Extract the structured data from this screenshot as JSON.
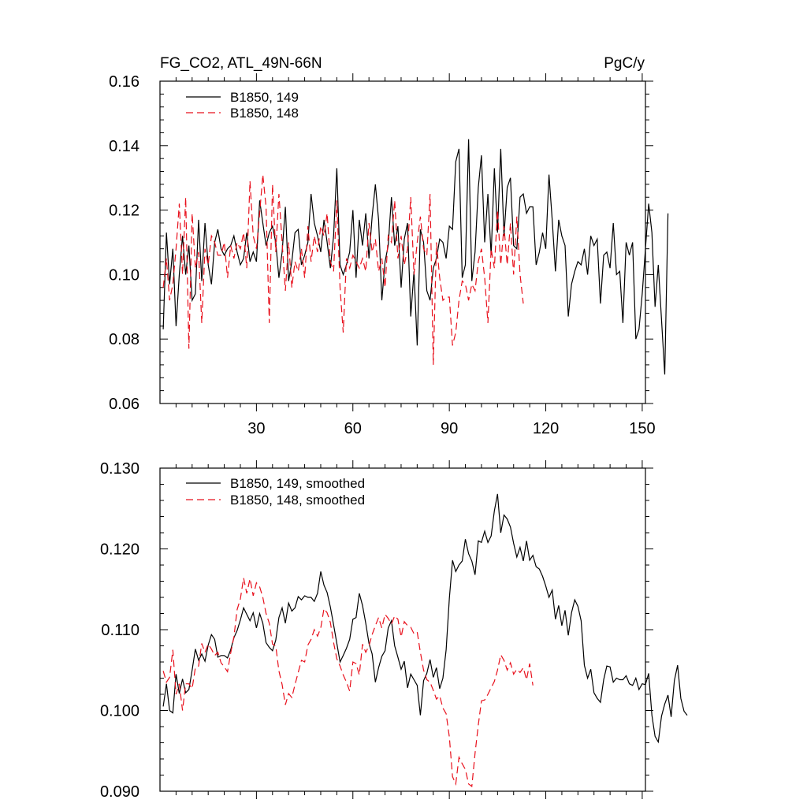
{
  "chart_data": [
    {
      "type": "line",
      "title_left": "FG_CO2, ATL_49N-66N",
      "title_right": "PgC/y",
      "xlim": [
        0,
        151
      ],
      "ylim": [
        0.06,
        0.16
      ],
      "xticks": [
        30,
        60,
        90,
        120,
        150
      ],
      "yticks": [
        0.06,
        0.08,
        0.1,
        0.12,
        0.14,
        0.16
      ],
      "ytick_labels": [
        "0.06",
        "0.08",
        "0.10",
        "0.12",
        "0.14",
        "0.16"
      ],
      "show_xtick_labels": true,
      "legend_position": "top-left",
      "series": [
        {
          "name": "B1850, 149",
          "color": "#000000",
          "dash": "solid",
          "values": [
            0.083,
            0.113,
            0.097,
            0.108,
            0.084,
            0.1,
            0.112,
            0.1,
            0.109,
            0.092,
            0.094,
            0.117,
            0.098,
            0.116,
            0.103,
            0.097,
            0.11,
            0.114,
            0.108,
            0.106,
            0.108,
            0.109,
            0.112,
            0.107,
            0.103,
            0.105,
            0.113,
            0.104,
            0.107,
            0.104,
            0.123,
            0.116,
            0.109,
            0.113,
            0.115,
            0.11,
            0.099,
            0.107,
            0.121,
            0.098,
            0.104,
            0.113,
            0.114,
            0.103,
            0.106,
            0.11,
            0.125,
            0.116,
            0.112,
            0.107,
            0.117,
            0.11,
            0.102,
            0.112,
            0.133,
            0.103,
            0.1,
            0.103,
            0.107,
            0.12,
            0.099,
            0.117,
            0.109,
            0.119,
            0.105,
            0.118,
            0.128,
            0.117,
            0.092,
            0.104,
            0.109,
            0.124,
            0.109,
            0.115,
            0.096,
            0.111,
            0.116,
            0.087,
            0.101,
            0.078,
            0.114,
            0.11,
            0.095,
            0.092,
            0.102,
            0.105,
            0.111,
            0.11,
            0.105,
            0.115,
            0.114,
            0.135,
            0.139,
            0.099,
            0.103,
            0.142,
            0.098,
            0.107,
            0.127,
            0.137,
            0.11,
            0.125,
            0.106,
            0.133,
            0.113,
            0.139,
            0.112,
            0.127,
            0.13,
            0.109,
            0.108,
            0.124,
            0.125,
            0.119,
            0.121,
            0.121,
            0.103,
            0.107,
            0.113,
            0.108,
            0.131,
            0.117,
            0.101,
            0.117,
            0.112,
            0.109,
            0.087,
            0.097,
            0.101,
            0.104,
            0.103,
            0.108,
            0.1,
            0.112,
            0.109,
            0.111,
            0.091,
            0.106,
            0.107,
            0.102,
            0.116,
            0.1,
            0.101,
            0.085,
            0.11,
            0.106,
            0.11,
            0.08,
            0.083,
            0.094,
            0.108,
            0.122,
            0.113,
            0.09,
            0.103,
            0.086,
            0.069,
            0.119
          ]
        },
        {
          "name": "B1850, 148",
          "color": "#e8101c",
          "dash": "dashed",
          "values": [
            0.096,
            0.105,
            0.092,
            0.097,
            0.108,
            0.122,
            0.1,
            0.124,
            0.077,
            0.119,
            0.102,
            0.107,
            0.085,
            0.108,
            0.103,
            0.112,
            0.11,
            0.106,
            0.106,
            0.11,
            0.099,
            0.109,
            0.105,
            0.11,
            0.108,
            0.113,
            0.102,
            0.129,
            0.112,
            0.108,
            0.119,
            0.131,
            0.121,
            0.085,
            0.128,
            0.107,
            0.125,
            0.11,
            0.095,
            0.11,
            0.096,
            0.104,
            0.101,
            0.108,
            0.099,
            0.115,
            0.104,
            0.112,
            0.107,
            0.115,
            0.112,
            0.119,
            0.104,
            0.101,
            0.123,
            0.096,
            0.082,
            0.105,
            0.102,
            0.106,
            0.104,
            0.102,
            0.105,
            0.101,
            0.116,
            0.107,
            0.111,
            0.101,
            0.105,
            0.096,
            0.112,
            0.11,
            0.123,
            0.105,
            0.112,
            0.103,
            0.108,
            0.124,
            0.1,
            0.11,
            0.118,
            0.108,
            0.106,
            0.125,
            0.072,
            0.11,
            0.099,
            0.092,
            0.093,
            0.093,
            0.078,
            0.082,
            0.092,
            0.098,
            0.097,
            0.092,
            0.097,
            0.095,
            0.104,
            0.108,
            0.099,
            0.085,
            0.108,
            0.102,
            0.12,
            0.103,
            0.115,
            0.103,
            0.116,
            0.1,
            0.118,
            0.1,
            0.091
          ]
        }
      ]
    },
    {
      "type": "line",
      "xlim": [
        0,
        151
      ],
      "ylim": [
        0.09,
        0.13
      ],
      "xticks": [
        30,
        60,
        90,
        120,
        150
      ],
      "yticks": [
        0.09,
        0.1,
        0.11,
        0.12,
        0.13
      ],
      "ytick_labels": [
        "0.090",
        "0.100",
        "0.110",
        "0.120",
        "0.130"
      ],
      "show_xtick_labels": false,
      "legend_position": "top-left",
      "series": [
        {
          "name": "B1850, 149, smoothed",
          "color": "#000000",
          "dash": "solid",
          "values": [
            0.1005,
            0.1033,
            0.1,
            0.0997,
            0.1045,
            0.1021,
            0.1039,
            0.1022,
            0.1026,
            0.105,
            0.1076,
            0.1062,
            0.107,
            0.1061,
            0.1081,
            0.1094,
            0.1088,
            0.1066,
            0.1068,
            0.1068,
            0.1065,
            0.1075,
            0.109,
            0.1099,
            0.1112,
            0.1127,
            0.1119,
            0.1111,
            0.1121,
            0.1102,
            0.112,
            0.1108,
            0.1084,
            0.1078,
            0.1074,
            0.1087,
            0.1115,
            0.1127,
            0.1108,
            0.1133,
            0.1123,
            0.1127,
            0.1141,
            0.1137,
            0.1142,
            0.114,
            0.114,
            0.1135,
            0.1145,
            0.1172,
            0.1155,
            0.1146,
            0.1128,
            0.1106,
            0.1083,
            0.106,
            0.1068,
            0.1077,
            0.1088,
            0.1113,
            0.1115,
            0.1145,
            0.113,
            0.1108,
            0.1083,
            0.107,
            0.1035,
            0.1053,
            0.1067,
            0.1074,
            0.1102,
            0.1111,
            0.108,
            0.1066,
            0.1051,
            0.1061,
            0.1028,
            0.1045,
            0.1038,
            0.1031,
            0.0994,
            0.1037,
            0.1046,
            0.1063,
            0.1041,
            0.1053,
            0.1027,
            0.104,
            0.1075,
            0.1139,
            0.1186,
            0.1172,
            0.118,
            0.1185,
            0.1212,
            0.1194,
            0.1185,
            0.1168,
            0.121,
            0.1208,
            0.1222,
            0.1208,
            0.1216,
            0.1247,
            0.1268,
            0.122,
            0.1242,
            0.1237,
            0.1227,
            0.1207,
            0.119,
            0.1202,
            0.1185,
            0.121,
            0.1186,
            0.1192,
            0.1178,
            0.1175,
            0.1166,
            0.1154,
            0.114,
            0.1149,
            0.1113,
            0.113,
            0.1105,
            0.1124,
            0.1093,
            0.1121,
            0.1137,
            0.1129,
            0.1111,
            0.1056,
            0.104,
            0.1051,
            0.1022,
            0.1015,
            0.101,
            0.1038,
            0.1055,
            0.1054,
            0.1035,
            0.104,
            0.1038,
            0.1038,
            0.1043,
            0.1033,
            0.1031,
            0.104,
            0.1026,
            0.1033,
            0.1032,
            0.1046,
            0.0994,
            0.0968,
            0.0961,
            0.0993,
            0.1008,
            0.1019,
            0.0992,
            0.1037,
            0.1056,
            0.1015,
            0.0999,
            0.0994
          ]
        },
        {
          "name": "B1850, 148, smoothed",
          "color": "#e8101c",
          "dash": "dashed",
          "values": [
            0.1049,
            0.1035,
            0.1041,
            0.1075,
            0.102,
            0.1033,
            0.1,
            0.1033,
            0.1033,
            0.1027,
            0.1053,
            0.1055,
            0.1083,
            0.1072,
            0.1082,
            0.1076,
            0.1068,
            0.1072,
            0.1059,
            0.1054,
            0.1048,
            0.1071,
            0.1091,
            0.1125,
            0.1138,
            0.1164,
            0.1145,
            0.1163,
            0.1142,
            0.1158,
            0.1153,
            0.114,
            0.112,
            0.1108,
            0.1082,
            0.108,
            0.1049,
            0.1032,
            0.1007,
            0.1021,
            0.1016,
            0.1032,
            0.1047,
            0.1062,
            0.106,
            0.1081,
            0.1088,
            0.11,
            0.1092,
            0.1102,
            0.1126,
            0.1121,
            0.1109,
            0.1084,
            0.1064,
            0.1055,
            0.1044,
            0.1035,
            0.1024,
            0.106,
            0.1058,
            0.1044,
            0.1082,
            0.1072,
            0.108,
            0.1094,
            0.1105,
            0.1115,
            0.1102,
            0.1119,
            0.1114,
            0.1107,
            0.1117,
            0.1113,
            0.1091,
            0.111,
            0.1105,
            0.1103,
            0.1095,
            0.1097,
            0.1072,
            0.105,
            0.1038,
            0.1035,
            0.1025,
            0.1014,
            0.1018,
            0.1003,
            0.0996,
            0.0967,
            0.0918,
            0.0909,
            0.0942,
            0.0934,
            0.0927,
            0.0909,
            0.0906,
            0.0947,
            0.0982,
            0.1012,
            0.1013,
            0.102,
            0.1028,
            0.1036,
            0.105,
            0.1069,
            0.1062,
            0.105,
            0.1059,
            0.1045,
            0.1051,
            0.1047,
            0.1053,
            0.1038,
            0.1058,
            0.1031
          ]
        }
      ]
    }
  ]
}
